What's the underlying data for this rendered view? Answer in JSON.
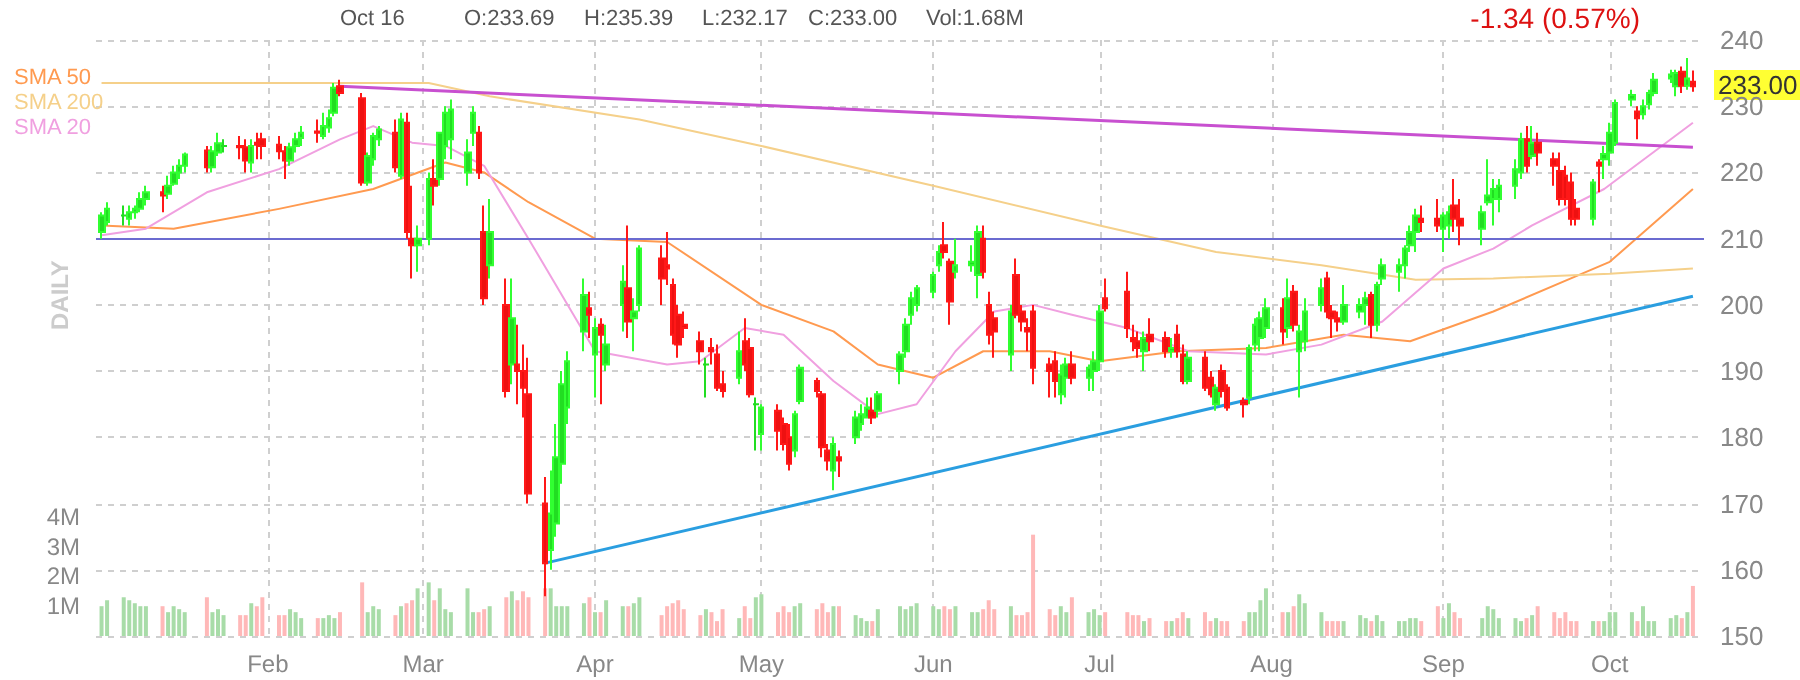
{
  "chart_data": {
    "type": "candlestick",
    "x": [
      "--01-02",
      "--01-03",
      "--01-06",
      "--01-07",
      "--01-08",
      "--01-09",
      "--01-10",
      "--01-13",
      "--01-14",
      "--01-15",
      "--01-16",
      "--01-17",
      "--01-21",
      "--01-22",
      "--01-23",
      "--01-24",
      "--01-27",
      "--01-28",
      "--01-29",
      "--01-30",
      "--01-31",
      "--02-03",
      "--02-04",
      "--02-05",
      "--02-06",
      "--02-07",
      "--02-10",
      "--02-11",
      "--02-12",
      "--02-13",
      "--02-14",
      "--02-18",
      "--02-19",
      "--02-20",
      "--02-21",
      "--02-24",
      "--02-25",
      "--02-26",
      "--02-27",
      "--02-28",
      "--03-02",
      "--03-03",
      "--03-04",
      "--03-05",
      "--03-06",
      "--03-09",
      "--03-10",
      "--03-11",
      "--03-12",
      "--03-13",
      "--03-16",
      "--03-17",
      "--03-18",
      "--03-19",
      "--03-20",
      "--03-23",
      "--03-24",
      "--03-25",
      "--03-26",
      "--03-27",
      "--03-30",
      "--03-31",
      "--04-01",
      "--04-02",
      "--04-03",
      "--04-06",
      "--04-07",
      "--04-08",
      "--04-09",
      "--04-13",
      "--04-14",
      "--04-15",
      "--04-16",
      "--04-17",
      "--04-20",
      "--04-21",
      "--04-22",
      "--04-23",
      "--04-24",
      "--04-27",
      "--04-28",
      "--04-29",
      "--04-30",
      "--05-01",
      "--05-04",
      "--05-05",
      "--05-06",
      "--05-07",
      "--05-08",
      "--05-11",
      "--05-12",
      "--05-13",
      "--05-14",
      "--05-15",
      "--05-18",
      "--05-19",
      "--05-20",
      "--05-21",
      "--05-22",
      "--05-26",
      "--05-27",
      "--05-28",
      "--05-29",
      "--06-01",
      "--06-02",
      "--06-03",
      "--06-04",
      "--06-05",
      "--06-08",
      "--06-09",
      "--06-10",
      "--06-11",
      "--06-12",
      "--06-15",
      "--06-16",
      "--06-17",
      "--06-18",
      "--06-19",
      "--06-22",
      "--06-23",
      "--06-24",
      "--06-25",
      "--06-26",
      "--06-29",
      "--06-30",
      "--07-01",
      "--07-02",
      "--07-06",
      "--07-07",
      "--07-08",
      "--07-09",
      "--07-10",
      "--07-13",
      "--07-14",
      "--07-15",
      "--07-16",
      "--07-17",
      "--07-20",
      "--07-21",
      "--07-22",
      "--07-23",
      "--07-24",
      "--07-27",
      "--07-28",
      "--07-29",
      "--07-30",
      "--07-31",
      "--08-03",
      "--08-04",
      "--08-05",
      "--08-06",
      "--08-07",
      "--08-10",
      "--08-11",
      "--08-12",
      "--08-13",
      "--08-14",
      "--08-17",
      "--08-18",
      "--08-19",
      "--08-20",
      "--08-21",
      "--08-24",
      "--08-25",
      "--08-26",
      "--08-27",
      "--08-28",
      "--08-31",
      "--09-01",
      "--09-02",
      "--09-03",
      "--09-04",
      "--09-08",
      "--09-09",
      "--09-10",
      "--09-11",
      "--09-14",
      "--09-15",
      "--09-16",
      "--09-17",
      "--09-18",
      "--09-21",
      "--09-22",
      "--09-23",
      "--09-24",
      "--09-25",
      "--09-28",
      "--09-29",
      "--09-30",
      "--10-01",
      "--10-02",
      "--10-05",
      "--10-06",
      "--10-07",
      "--10-08",
      "--10-09",
      "--10-12",
      "--10-13",
      "--10-14",
      "--10-15",
      "--10-16"
    ],
    "ohlc": [
      [
        211,
        214,
        210,
        213.5
      ],
      [
        212.5,
        215.5,
        212,
        214.5
      ],
      [
        213.5,
        215,
        212,
        213.5
      ],
      [
        213,
        215,
        212,
        214
      ],
      [
        214,
        215,
        213,
        214.5
      ],
      [
        214.5,
        217,
        214,
        216
      ],
      [
        216,
        218,
        215,
        217
      ],
      [
        217,
        218,
        214,
        216.5
      ],
      [
        216.8,
        219.5,
        216,
        218
      ],
      [
        218.3,
        221,
        218,
        220
      ],
      [
        220,
        222,
        219,
        221
      ],
      [
        221,
        223,
        220,
        222.7
      ],
      [
        223.3,
        224,
        220,
        220.8
      ],
      [
        220.8,
        224,
        220,
        223.2
      ],
      [
        223,
        226,
        222.5,
        224.4
      ],
      [
        224,
        225,
        223,
        224
      ],
      [
        224,
        225.5,
        222,
        223.8
      ],
      [
        223.8,
        225,
        220,
        221.8
      ],
      [
        221.5,
        225,
        220,
        224
      ],
      [
        224.5,
        226,
        222,
        224.2
      ],
      [
        225,
        226,
        222,
        224
      ],
      [
        224.2,
        225.5,
        222,
        223.2
      ],
      [
        223.2,
        224,
        219,
        221.8
      ],
      [
        221.8,
        224.5,
        221,
        223.8
      ],
      [
        224,
        226,
        223,
        225
      ],
      [
        225.2,
        227,
        224,
        226
      ],
      [
        226.2,
        228,
        224.5,
        226
      ],
      [
        225.5,
        229,
        225,
        227
      ],
      [
        226.8,
        229.5,
        226,
        228.2
      ],
      [
        229,
        233.5,
        228.5,
        232.8
      ],
      [
        233,
        234,
        231.5,
        232
      ],
      [
        231.2,
        232,
        218,
        218.5
      ],
      [
        218.5,
        223,
        218,
        222.5
      ],
      [
        222,
        226,
        221,
        225.5
      ],
      [
        225,
        227,
        224,
        226.5
      ],
      [
        226,
        228,
        220,
        220.8
      ],
      [
        219.5,
        229,
        219,
        228
      ],
      [
        227.5,
        229,
        210,
        211
      ],
      [
        210,
        218,
        204,
        209
      ],
      [
        209,
        212,
        205,
        210
      ],
      [
        210,
        220,
        209,
        219
      ],
      [
        219,
        222,
        215,
        218
      ],
      [
        219,
        226,
        218,
        226
      ],
      [
        224,
        230,
        222,
        229
      ],
      [
        225,
        231,
        222,
        229.5
      ],
      [
        220,
        225,
        218,
        223
      ],
      [
        226,
        230,
        224,
        229
      ],
      [
        226,
        227,
        219,
        220
      ],
      [
        211,
        215,
        200,
        201
      ],
      [
        206,
        216,
        204,
        211
      ],
      [
        200,
        204,
        186,
        187
      ],
      [
        191,
        204,
        188,
        198
      ],
      [
        191,
        197,
        185,
        190
      ],
      [
        190,
        194,
        183,
        187.5
      ],
      [
        186.5,
        192,
        170,
        171.5
      ],
      [
        170,
        174,
        156,
        161
      ],
      [
        163,
        175,
        160,
        168.5
      ],
      [
        167,
        182,
        165,
        177
      ],
      [
        176,
        190,
        173,
        188
      ],
      [
        184.5,
        193,
        182,
        191.5
      ],
      [
        196,
        204,
        193,
        201.5
      ],
      [
        199.5,
        202,
        195,
        198.5
      ],
      [
        192.5,
        198,
        186,
        196.5
      ],
      [
        197,
        198,
        185,
        195.5
      ],
      [
        191,
        197,
        190,
        194
      ],
      [
        200,
        206,
        196,
        203.5
      ],
      [
        202.5,
        212,
        195,
        197.5
      ],
      [
        198,
        201,
        193,
        199
      ],
      [
        200,
        209,
        199,
        208.5
      ],
      [
        207,
        209,
        200,
        204
      ],
      [
        206,
        211,
        203,
        205.5
      ],
      [
        203,
        204,
        194,
        195.5
      ],
      [
        198.5,
        200,
        192,
        194
      ],
      [
        197,
        199,
        195,
        196.5
      ],
      [
        194.5,
        196,
        191,
        193
      ],
      [
        191,
        192,
        186,
        191
      ],
      [
        193.5,
        195,
        191,
        193
      ],
      [
        192.5,
        194,
        187,
        187.5
      ],
      [
        188,
        190,
        186,
        187
      ],
      [
        189,
        196,
        188,
        193
      ],
      [
        194.5,
        198,
        190,
        191
      ],
      [
        193.5,
        195,
        186,
        186.5
      ],
      [
        185,
        186,
        178,
        185
      ],
      [
        180.5,
        185,
        178,
        184.5
      ],
      [
        184,
        185,
        178,
        181
      ],
      [
        182,
        183,
        178,
        179
      ],
      [
        180,
        182,
        175,
        176
      ],
      [
        178,
        184,
        177,
        183.5
      ],
      [
        185.5,
        191,
        185,
        190.5
      ],
      [
        188.5,
        189,
        186,
        187
      ],
      [
        186.5,
        187,
        177,
        178.5
      ],
      [
        178,
        179,
        175,
        176.5
      ],
      [
        175,
        180,
        172,
        179
      ],
      [
        177,
        178,
        174,
        176.5
      ],
      [
        180,
        184,
        179,
        183
      ],
      [
        182,
        185,
        181,
        183.5
      ],
      [
        183,
        186,
        183,
        184.5
      ],
      [
        184,
        186,
        182,
        183
      ],
      [
        184,
        187,
        183,
        186.5
      ],
      [
        190,
        193,
        188,
        192.5
      ],
      [
        193,
        198,
        192,
        197
      ],
      [
        198.5,
        202,
        197,
        201
      ],
      [
        200,
        203,
        199,
        202.5
      ],
      [
        202,
        205,
        201,
        204.5
      ],
      [
        206,
        209,
        205,
        208
      ],
      [
        209,
        212.5,
        207,
        208
      ],
      [
        206.5,
        207,
        197,
        200.5
      ],
      [
        205,
        210,
        204,
        206
      ],
      [
        206,
        209,
        205,
        206.5
      ],
      [
        204.5,
        212,
        201,
        211
      ],
      [
        210,
        212,
        204,
        205
      ],
      [
        200,
        202,
        194,
        195.5
      ],
      [
        198,
        199,
        192,
        196
      ],
      [
        192.5,
        200,
        190,
        199
      ],
      [
        204.5,
        207,
        198,
        198.5
      ],
      [
        199,
        200,
        196,
        197.5
      ],
      [
        196.5,
        198,
        193,
        196
      ],
      [
        199,
        200,
        188,
        190.5
      ],
      [
        191,
        192,
        186,
        190
      ],
      [
        191.5,
        193,
        186,
        188.5
      ],
      [
        186.5,
        191,
        185,
        189.5
      ],
      [
        189,
        192,
        186,
        191
      ],
      [
        191,
        193,
        188,
        189
      ],
      [
        189,
        191,
        187,
        190.5
      ],
      [
        190,
        193,
        187,
        191.5
      ],
      [
        191.5,
        200,
        190,
        199
      ],
      [
        201,
        204,
        199,
        199.5
      ],
      [
        202,
        205,
        195,
        196.5
      ],
      [
        195,
        197,
        193,
        194.5
      ],
      [
        194.5,
        196,
        192,
        193.5
      ],
      [
        193,
        196,
        190,
        195
      ],
      [
        195.5,
        198,
        193,
        194.5
      ],
      [
        195,
        196,
        192,
        193
      ],
      [
        193,
        195,
        192,
        193.5
      ],
      [
        195.5,
        197,
        192,
        193
      ],
      [
        192.5,
        194,
        188,
        188.5
      ],
      [
        188.5,
        193,
        188,
        192
      ],
      [
        192,
        193,
        187,
        187.5
      ],
      [
        189,
        190,
        186,
        186.5
      ],
      [
        185,
        188,
        184,
        187.5
      ],
      [
        190,
        191,
        186,
        187
      ],
      [
        187.5,
        188,
        184,
        184.5
      ],
      [
        185.5,
        186,
        183,
        185
      ],
      [
        186,
        194,
        185,
        193.5
      ],
      [
        194,
        198,
        193,
        197
      ],
      [
        195,
        199,
        193,
        198
      ],
      [
        196.5,
        201,
        195,
        199.5
      ],
      [
        199.5,
        201,
        194,
        196
      ],
      [
        196.5,
        204,
        195,
        201
      ],
      [
        202,
        203,
        196,
        197
      ],
      [
        193,
        197,
        186,
        196
      ],
      [
        194.5,
        201,
        193,
        199
      ],
      [
        200,
        204,
        199,
        202.5
      ],
      [
        204,
        205,
        198,
        199
      ],
      [
        199,
        200,
        195,
        198
      ],
      [
        198,
        199,
        196,
        197.5
      ],
      [
        197.5,
        203,
        197,
        200
      ],
      [
        199,
        201,
        198,
        200
      ],
      [
        200,
        202,
        197,
        201
      ],
      [
        201.5,
        202,
        195,
        197
      ],
      [
        197,
        203.5,
        196,
        203
      ],
      [
        204,
        207,
        203,
        206
      ],
      [
        205,
        207,
        202,
        206
      ],
      [
        206,
        209,
        204,
        208.5
      ],
      [
        209,
        212,
        208,
        211
      ],
      [
        211,
        214.5,
        208,
        213.5
      ],
      [
        213,
        215,
        211,
        212.5
      ],
      [
        213,
        216,
        211,
        212
      ],
      [
        211.5,
        214,
        208,
        213.5
      ],
      [
        212,
        215,
        210,
        214
      ],
      [
        215,
        219,
        211,
        213
      ],
      [
        213,
        216,
        209,
        212
      ],
      [
        211.5,
        215,
        209,
        214
      ],
      [
        215.5,
        222,
        215,
        216.5
      ],
      [
        216,
        219,
        212,
        217.5
      ],
      [
        216,
        219,
        214,
        218
      ],
      [
        218,
        222,
        216,
        220.5
      ],
      [
        220,
        226,
        219,
        225
      ],
      [
        225,
        227,
        220,
        221
      ],
      [
        222.5,
        227,
        222,
        224.5
      ],
      [
        224.5,
        226,
        221,
        223
      ],
      [
        222,
        223,
        218,
        221
      ],
      [
        220.2,
        223,
        215,
        216
      ],
      [
        219.5,
        221,
        215,
        216
      ],
      [
        218.5,
        220,
        212,
        213
      ],
      [
        214.5,
        216,
        212,
        213
      ],
      [
        213,
        219,
        212,
        218.5
      ],
      [
        221.5,
        222,
        217,
        221
      ],
      [
        222,
        224,
        219,
        222.8
      ],
      [
        223,
        227.5,
        221,
        226
      ],
      [
        224.5,
        231,
        224,
        230.5
      ],
      [
        231,
        232.5,
        230,
        231.7
      ],
      [
        229.2,
        230,
        225,
        228.2
      ],
      [
        228.8,
        231,
        228,
        230
      ],
      [
        230.3,
        232.5,
        229.5,
        232
      ],
      [
        232,
        235,
        231.5,
        234
      ],
      [
        234.2,
        235.5,
        233.5,
        234.8
      ],
      [
        233,
        235.5,
        231.5,
        235
      ],
      [
        235.2,
        236,
        232,
        233.1
      ],
      [
        233.1,
        237.3,
        232.5,
        234.2
      ],
      [
        233.69,
        235.39,
        232.17,
        233
      ]
    ],
    "colors": [
      "#22dd22",
      "#22dd22",
      "#22dd22",
      "#22dd22",
      "#22dd22",
      "#22dd22",
      "#22dd22",
      "#ee1111",
      "#22dd22",
      "#22dd22",
      "#22dd22",
      "#22dd22",
      "#ee1111",
      "#22dd22",
      "#22dd22",
      "#22dd22",
      "#ee1111",
      "#ee1111",
      "#22dd22",
      "#ee1111",
      "#ee1111",
      "#ee1111",
      "#ee1111",
      "#22dd22",
      "#22dd22",
      "#22dd22",
      "#ee1111",
      "#22dd22",
      "#22dd22",
      "#22dd22",
      "#ee1111",
      "#ee1111",
      "#22dd22",
      "#22dd22",
      "#22dd22",
      "#ee1111",
      "#22dd22",
      "#ee1111",
      "#ee1111",
      "#22dd22",
      "#22dd22",
      "#ee1111",
      "#22dd22",
      "#22dd22",
      "#22dd22",
      "#22dd22",
      "#22dd22",
      "#ee1111",
      "#ee1111",
      "#22dd22",
      "#ee1111",
      "#22dd22",
      "#ee1111",
      "#ee1111",
      "#ee1111",
      "#ee1111",
      "#22dd22",
      "#22dd22",
      "#22dd22",
      "#22dd22",
      "#22dd22",
      "#ee1111",
      "#22dd22",
      "#ee1111",
      "#22dd22",
      "#22dd22",
      "#ee1111",
      "#22dd22",
      "#22dd22",
      "#ee1111",
      "#ee1111",
      "#ee1111",
      "#ee1111",
      "#ee1111",
      "#ee1111",
      "#22dd22",
      "#ee1111",
      "#ee1111",
      "#ee1111",
      "#22dd22",
      "#ee1111",
      "#ee1111",
      "#22dd22",
      "#22dd22",
      "#ee1111",
      "#ee1111",
      "#ee1111",
      "#22dd22",
      "#22dd22",
      "#ee1111",
      "#ee1111",
      "#ee1111",
      "#22dd22",
      "#ee1111",
      "#22dd22",
      "#22dd22",
      "#22dd22",
      "#ee1111",
      "#22dd22",
      "#22dd22",
      "#22dd22",
      "#22dd22",
      "#22dd22",
      "#22dd22",
      "#22dd22",
      "#ee1111",
      "#ee1111",
      "#22dd22",
      "#22dd22",
      "#22dd22",
      "#ee1111",
      "#ee1111",
      "#ee1111",
      "#22dd22",
      "#ee1111",
      "#ee1111",
      "#ee1111",
      "#ee1111",
      "#ee1111",
      "#ee1111",
      "#22dd22",
      "#22dd22",
      "#ee1111",
      "#22dd22",
      "#22dd22",
      "#22dd22",
      "#ee1111",
      "#ee1111",
      "#ee1111",
      "#ee1111",
      "#22dd22",
      "#ee1111",
      "#ee1111",
      "#22dd22",
      "#ee1111",
      "#ee1111",
      "#22dd22",
      "#ee1111",
      "#ee1111",
      "#22dd22",
      "#ee1111",
      "#ee1111",
      "#ee1111",
      "#22dd22",
      "#22dd22",
      "#22dd22",
      "#22dd22",
      "#ee1111",
      "#22dd22",
      "#ee1111",
      "#22dd22",
      "#22dd22",
      "#22dd22",
      "#ee1111",
      "#ee1111",
      "#ee1111",
      "#22dd22",
      "#22dd22",
      "#22dd22",
      "#ee1111",
      "#22dd22",
      "#22dd22",
      "#22dd22",
      "#22dd22",
      "#22dd22",
      "#22dd22",
      "#ee1111",
      "#ee1111",
      "#22dd22",
      "#22dd22",
      "#ee1111",
      "#ee1111",
      "#22dd22",
      "#22dd22",
      "#22dd22",
      "#22dd22",
      "#22dd22",
      "#22dd22",
      "#ee1111",
      "#22dd22",
      "#ee1111",
      "#ee1111",
      "#ee1111",
      "#ee1111",
      "#ee1111",
      "#ee1111",
      "#22dd22",
      "#ee1111",
      "#22dd22",
      "#22dd22",
      "#22dd22",
      "#22dd22",
      "#ee1111",
      "#22dd22",
      "#22dd22",
      "#22dd22",
      "#22dd22",
      "#22dd22",
      "#ee1111",
      "#22dd22",
      "#ee1111"
    ],
    "series": [
      {
        "type": "bar",
        "axis": "y2",
        "values": [
          1.0,
          1.2,
          1.3,
          1.2,
          1.1,
          1.0,
          1.0,
          1.0,
          0.8,
          1.0,
          0.9,
          0.8,
          1.3,
          0.8,
          0.9,
          0.7,
          0.7,
          0.7,
          1.1,
          1.0,
          1.3,
          0.7,
          0.7,
          0.9,
          0.8,
          0.6,
          0.6,
          0.6,
          0.7,
          0.6,
          0.8,
          1.8,
          0.8,
          1.0,
          0.9,
          0.7,
          1.0,
          1.1,
          1.2,
          1.6,
          1.8,
          1.2,
          1.6,
          0.9,
          0.8,
          1.6,
          0.8,
          0.8,
          0.9,
          1.0,
          1.3,
          1.5,
          1.2,
          1.5,
          1.3,
          1.6,
          1.6,
          1.0,
          1.0,
          1.0,
          1.1,
          1.3,
          0.8,
          0.8,
          1.2,
          1.0,
          1.0,
          1.1,
          1.3,
          0.7,
          1.0,
          1.1,
          1.2,
          0.9,
          0.7,
          0.9,
          0.8,
          0.5,
          0.9,
          0.6,
          1.0,
          0.6,
          1.3,
          1.4,
          0.8,
          1.0,
          0.8,
          1.0,
          1.1,
          0.9,
          1.1,
          0.8,
          1.0,
          1.0,
          0.7,
          0.6,
          0.5,
          0.5,
          0.9,
          1.0,
          0.9,
          1.0,
          1.1,
          1.0,
          0.9,
          1.0,
          0.9,
          1.0,
          0.8,
          0.8,
          0.9,
          1.2,
          0.9,
          1.0,
          0.7,
          0.7,
          0.8,
          3.4,
          0.9,
          0.7,
          1.0,
          0.8,
          1.3,
          0.8,
          0.9,
          0.7,
          0.8,
          0.8,
          0.7,
          0.7,
          0.5,
          0.6,
          0.5,
          0.5,
          0.6,
          0.8,
          0.6,
          0.8,
          0.5,
          0.6,
          0.5,
          0.5,
          0.5,
          0.8,
          0.8,
          1.2,
          1.6,
          0.8,
          0.8,
          1.0,
          1.4,
          1.1,
          0.8,
          0.5,
          0.5,
          0.5,
          0.5,
          0.7,
          0.6,
          0.5,
          0.7,
          0.5,
          0.5,
          0.5,
          0.6,
          0.6,
          0.5,
          1.0,
          0.6,
          1.1,
          0.8,
          0.6,
          0.6,
          1.0,
          0.9,
          0.6,
          0.6,
          0.5,
          0.6,
          0.7,
          1.0,
          0.8,
          0.6,
          0.8,
          0.5,
          0.5,
          0.5,
          0.5,
          0.5,
          0.8,
          0.8,
          0.8,
          0.5,
          1.0,
          0.5,
          0.5,
          0.6,
          0.7,
          0.6,
          0.8,
          1.68
        ],
        "colors": [
          "#a8dca8",
          "#a8dca8",
          "#a8dca8",
          "#a8dca8",
          "#a8dca8",
          "#a8dca8",
          "#a8dca8",
          "#ffb8b8",
          "#a8dca8",
          "#a8dca8",
          "#a8dca8",
          "#a8dca8",
          "#ffb8b8",
          "#a8dca8",
          "#a8dca8",
          "#a8dca8",
          "#ffb8b8",
          "#ffb8b8",
          "#a8dca8",
          "#ffb8b8",
          "#ffb8b8",
          "#ffb8b8",
          "#ffb8b8",
          "#a8dca8",
          "#a8dca8",
          "#a8dca8",
          "#ffb8b8",
          "#a8dca8",
          "#a8dca8",
          "#a8dca8",
          "#ffb8b8",
          "#ffb8b8",
          "#a8dca8",
          "#a8dca8",
          "#a8dca8",
          "#ffb8b8",
          "#a8dca8",
          "#ffb8b8",
          "#ffb8b8",
          "#a8dca8",
          "#a8dca8",
          "#ffb8b8",
          "#a8dca8",
          "#a8dca8",
          "#a8dca8",
          "#a8dca8",
          "#a8dca8",
          "#ffb8b8",
          "#ffb8b8",
          "#a8dca8",
          "#ffb8b8",
          "#a8dca8",
          "#ffb8b8",
          "#ffb8b8",
          "#ffb8b8",
          "#ffb8b8",
          "#a8dca8",
          "#a8dca8",
          "#a8dca8",
          "#a8dca8",
          "#a8dca8",
          "#ffb8b8",
          "#a8dca8",
          "#ffb8b8",
          "#a8dca8",
          "#a8dca8",
          "#ffb8b8",
          "#a8dca8",
          "#a8dca8",
          "#ffb8b8",
          "#ffb8b8",
          "#ffb8b8",
          "#ffb8b8",
          "#ffb8b8",
          "#ffb8b8",
          "#a8dca8",
          "#ffb8b8",
          "#ffb8b8",
          "#ffb8b8",
          "#a8dca8",
          "#ffb8b8",
          "#ffb8b8",
          "#a8dca8",
          "#a8dca8",
          "#ffb8b8",
          "#ffb8b8",
          "#ffb8b8",
          "#a8dca8",
          "#a8dca8",
          "#ffb8b8",
          "#ffb8b8",
          "#ffb8b8",
          "#a8dca8",
          "#ffb8b8",
          "#a8dca8",
          "#a8dca8",
          "#a8dca8",
          "#ffb8b8",
          "#a8dca8",
          "#a8dca8",
          "#a8dca8",
          "#a8dca8",
          "#a8dca8",
          "#a8dca8",
          "#a8dca8",
          "#ffb8b8",
          "#ffb8b8",
          "#a8dca8",
          "#a8dca8",
          "#a8dca8",
          "#ffb8b8",
          "#ffb8b8",
          "#ffb8b8",
          "#a8dca8",
          "#ffb8b8",
          "#ffb8b8",
          "#ffb8b8",
          "#ffb8b8",
          "#ffb8b8",
          "#ffb8b8",
          "#a8dca8",
          "#a8dca8",
          "#ffb8b8",
          "#a8dca8",
          "#a8dca8",
          "#a8dca8",
          "#ffb8b8",
          "#ffb8b8",
          "#ffb8b8",
          "#ffb8b8",
          "#a8dca8",
          "#ffb8b8",
          "#ffb8b8",
          "#a8dca8",
          "#ffb8b8",
          "#ffb8b8",
          "#a8dca8",
          "#ffb8b8",
          "#ffb8b8",
          "#a8dca8",
          "#ffb8b8",
          "#ffb8b8",
          "#ffb8b8",
          "#a8dca8",
          "#a8dca8",
          "#a8dca8",
          "#a8dca8",
          "#ffb8b8",
          "#a8dca8",
          "#ffb8b8",
          "#a8dca8",
          "#a8dca8",
          "#a8dca8",
          "#ffb8b8",
          "#ffb8b8",
          "#ffb8b8",
          "#a8dca8",
          "#a8dca8",
          "#a8dca8",
          "#ffb8b8",
          "#a8dca8",
          "#a8dca8",
          "#a8dca8",
          "#a8dca8",
          "#a8dca8",
          "#a8dca8",
          "#ffb8b8",
          "#ffb8b8",
          "#a8dca8",
          "#a8dca8",
          "#ffb8b8",
          "#ffb8b8",
          "#a8dca8",
          "#a8dca8",
          "#a8dca8",
          "#a8dca8",
          "#a8dca8",
          "#a8dca8",
          "#ffb8b8",
          "#a8dca8",
          "#ffb8b8",
          "#ffb8b8",
          "#ffb8b8",
          "#ffb8b8",
          "#ffb8b8",
          "#ffb8b8",
          "#a8dca8",
          "#ffb8b8",
          "#a8dca8",
          "#a8dca8",
          "#a8dca8",
          "#a8dca8",
          "#ffb8b8",
          "#a8dca8",
          "#a8dca8",
          "#a8dca8",
          "#a8dca8",
          "#a8dca8",
          "#ffb8b8",
          "#a8dca8",
          "#ffb8b8"
        ]
      },
      {
        "type": "line",
        "name": "SMA 50",
        "color": "#ff9a50",
        "x": [
          "--01-02",
          "--01-15",
          "--02-03",
          "--02-20",
          "--03-05",
          "--03-12",
          "--03-20",
          "--04-01",
          "--04-14",
          "--05-01",
          "--05-14",
          "--05-22",
          "--06-01",
          "--06-10",
          "--06-22",
          "--07-01",
          "--07-15",
          "--07-31",
          "--08-14",
          "--08-26",
          "--09-10",
          "--09-24",
          "--10-01",
          "--10-16"
        ],
        "values": [
          212,
          211.5,
          214.5,
          217.5,
          221.5,
          220,
          215.5,
          210,
          209.5,
          200,
          196,
          191,
          189,
          193,
          193,
          191.5,
          193,
          193.5,
          195.5,
          194.5,
          199,
          204,
          206.5,
          217.5
        ]
      },
      {
        "type": "line",
        "name": "SMA 200",
        "color": "#f5d08a",
        "x": [
          "--01-02",
          "--02-03",
          "--03-02",
          "--03-13",
          "--04-09",
          "--05-01",
          "--06-01",
          "--07-01",
          "--07-22",
          "--08-10",
          "--08-27",
          "--09-10",
          "--10-01",
          "--10-16"
        ],
        "values": [
          233.5,
          233.5,
          233.5,
          231.5,
          228,
          224,
          218,
          212,
          208,
          206,
          203.8,
          204,
          204.7,
          205.5
        ]
      },
      {
        "type": "line",
        "name": "SMA 20",
        "color": "#f0a0e0",
        "x": [
          "--01-02",
          "--01-10",
          "--01-21",
          "--02-03",
          "--02-14",
          "--02-20",
          "--02-27",
          "--03-05",
          "--03-12",
          "--03-20",
          "--04-01",
          "--04-14",
          "--04-20",
          "--04-28",
          "--05-05",
          "--05-14",
          "--05-22",
          "--05-29",
          "--06-05",
          "--06-12",
          "--06-19",
          "--06-26",
          "--07-06",
          "--07-17",
          "--07-31",
          "--08-10",
          "--08-21",
          "--09-01",
          "--09-10",
          "--09-17",
          "--09-30",
          "--10-16"
        ],
        "values": [
          210.5,
          211.5,
          217,
          220.5,
          225,
          227,
          224.5,
          224,
          221,
          210,
          193,
          191,
          191.5,
          196.5,
          195.5,
          188.5,
          183.5,
          185,
          193,
          199,
          200,
          198.5,
          196.5,
          193,
          192.5,
          194,
          197.5,
          205.5,
          208.5,
          212,
          217.5,
          227.5
        ]
      },
      {
        "type": "line",
        "color": "#c850d0",
        "x": [
          "--02-14",
          "--10-16"
        ],
        "values": [
          233,
          223.8
        ]
      },
      {
        "type": "line",
        "color": "#2a9ee0",
        "x": [
          "--03-23",
          "--10-16"
        ],
        "values": [
          161,
          201.3
        ]
      }
    ],
    "xlim": [
      "--01-01",
      "--10-18"
    ],
    "ylim": [
      150,
      240
    ],
    "yticks": [
      150,
      160,
      170,
      180,
      190,
      200,
      210,
      220,
      230,
      240
    ],
    "y2lim": [
      0,
      20
    ],
    "y2ticks": [
      {
        "value": 1,
        "label": "1M"
      },
      {
        "value": 2,
        "label": "2M"
      },
      {
        "value": 3,
        "label": "3M"
      },
      {
        "value": 4,
        "label": "4M"
      }
    ],
    "xticks": [
      {
        "value": "--02-01",
        "label": "Feb"
      },
      {
        "value": "--03-01",
        "label": "Mar"
      },
      {
        "value": "--04-01",
        "label": "Apr"
      },
      {
        "value": "--05-01",
        "label": "May"
      },
      {
        "value": "--06-01",
        "label": "Jun"
      },
      {
        "value": "--07-01",
        "label": "Jul"
      },
      {
        "value": "--08-01",
        "label": "Aug"
      },
      {
        "value": "--09-01",
        "label": "Sep"
      },
      {
        "value": "--10-01",
        "label": "Oct"
      }
    ],
    "ref_lines": [
      {
        "axis": "y",
        "value": 210,
        "color": "#6b6bd0"
      }
    ],
    "grid": true,
    "legend": "top left",
    "annotations": [
      "Oct 16",
      "O:233.69",
      "H:235.39",
      "L:232.17",
      "C:233.00",
      "Vol:1.68M",
      "-1.34 (0.57%)",
      "DAILY",
      "233.00"
    ]
  }
}
